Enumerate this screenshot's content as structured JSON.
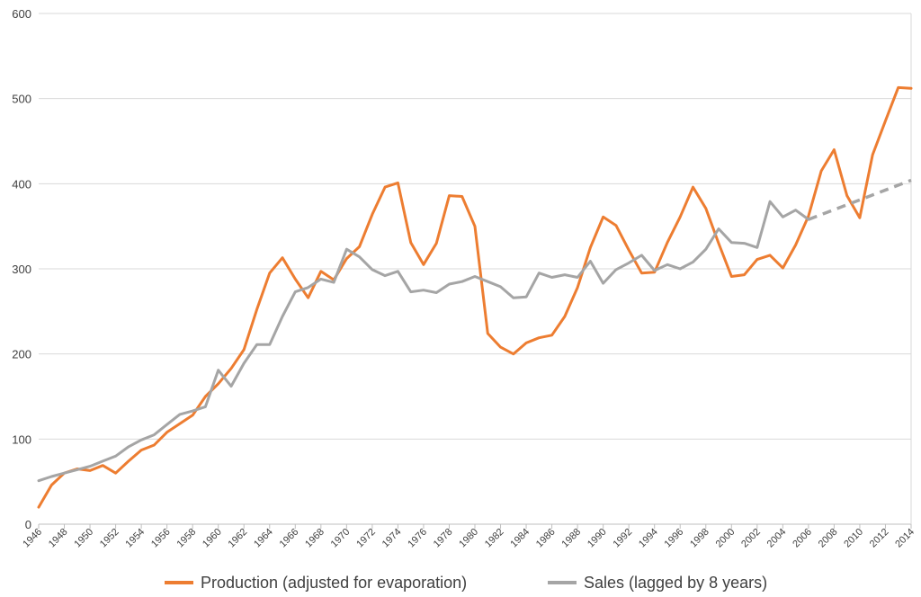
{
  "chart_data": {
    "type": "line",
    "title": "",
    "xlabel": "",
    "ylabel": "",
    "ylim": [
      0,
      600
    ],
    "yticks": [
      0,
      100,
      200,
      300,
      400,
      500,
      600
    ],
    "xlim": [
      1946,
      2014
    ],
    "xticks": [
      1946,
      1948,
      1950,
      1952,
      1954,
      1956,
      1958,
      1960,
      1962,
      1964,
      1966,
      1968,
      1970,
      1972,
      1974,
      1976,
      1978,
      1980,
      1982,
      1984,
      1986,
      1988,
      1990,
      1992,
      1994,
      1996,
      1998,
      2000,
      2002,
      2004,
      2006,
      2008,
      2010,
      2012,
      2014
    ],
    "grid": "horizontal",
    "legend_position": "bottom",
    "series": [
      {
        "name": "Production (adjusted for evaporation)",
        "color": "#ED7D31",
        "dashed": false,
        "x": [
          1946,
          1947,
          1948,
          1949,
          1950,
          1951,
          1952,
          1953,
          1954,
          1955,
          1956,
          1957,
          1958,
          1959,
          1960,
          1961,
          1962,
          1963,
          1964,
          1965,
          1966,
          1967,
          1968,
          1969,
          1970,
          1971,
          1972,
          1973,
          1974,
          1975,
          1976,
          1977,
          1978,
          1979,
          1980,
          1981,
          1982,
          1983,
          1984,
          1985,
          1986,
          1987,
          1988,
          1989,
          1990,
          1991,
          1992,
          1993,
          1994,
          1995,
          1996,
          1997,
          1998,
          1999,
          2000,
          2001,
          2002,
          2003,
          2004,
          2005,
          2006,
          2007,
          2008,
          2009,
          2010,
          2011,
          2012,
          2013,
          2014
        ],
        "values": [
          20,
          46,
          60,
          65,
          63,
          69,
          60,
          74,
          87,
          93,
          108,
          118,
          128,
          150,
          165,
          183,
          205,
          252,
          295,
          313,
          288,
          266,
          297,
          287,
          312,
          326,
          364,
          396,
          401,
          331,
          305,
          330,
          386,
          385,
          350,
          224,
          208,
          200,
          213,
          219,
          222,
          244,
          278,
          325,
          361,
          351,
          322,
          295,
          296,
          331,
          361,
          396,
          371,
          330,
          291,
          293,
          311,
          316,
          301,
          328,
          362,
          415,
          440,
          386,
          360,
          434,
          474,
          513,
          512
        ]
      },
      {
        "name": "Sales (lagged by 8 years)",
        "color": "#A5A5A5",
        "dashed": false,
        "x": [
          1946,
          1947,
          1948,
          1949,
          1950,
          1951,
          1952,
          1953,
          1954,
          1955,
          1956,
          1957,
          1958,
          1959,
          1960,
          1961,
          1962,
          1963,
          1964,
          1965,
          1966,
          1967,
          1968,
          1969,
          1970,
          1971,
          1972,
          1973,
          1974,
          1975,
          1976,
          1977,
          1978,
          1979,
          1980,
          1981,
          1982,
          1983,
          1984,
          1985,
          1986,
          1987,
          1988,
          1989,
          1990,
          1991,
          1992,
          1993,
          1994,
          1995,
          1996,
          1997,
          1998,
          1999,
          2000,
          2001,
          2002,
          2003,
          2004,
          2005,
          2006
        ],
        "values": [
          51,
          56,
          60,
          64,
          68,
          74,
          80,
          91,
          99,
          105,
          117,
          129,
          133,
          138,
          181,
          162,
          189,
          211,
          211,
          244,
          273,
          278,
          288,
          284,
          323,
          314,
          299,
          292,
          297,
          273,
          275,
          272,
          282,
          285,
          291,
          285,
          279,
          266,
          267,
          295,
          290,
          293,
          290,
          309,
          283,
          299,
          307,
          316,
          298,
          305,
          300,
          308,
          323,
          347,
          331,
          330,
          325,
          379,
          361,
          369,
          358
        ]
      },
      {
        "name": "",
        "color": "#A5A5A5",
        "dashed": true,
        "x": [
          2006,
          2014
        ],
        "values": [
          358,
          404
        ]
      }
    ]
  },
  "legend": [
    {
      "label": "Production (adjusted for evaporation)",
      "color": "#ED7D31"
    },
    {
      "label": "Sales (lagged by 8 years)",
      "color": "#A5A5A5"
    }
  ]
}
